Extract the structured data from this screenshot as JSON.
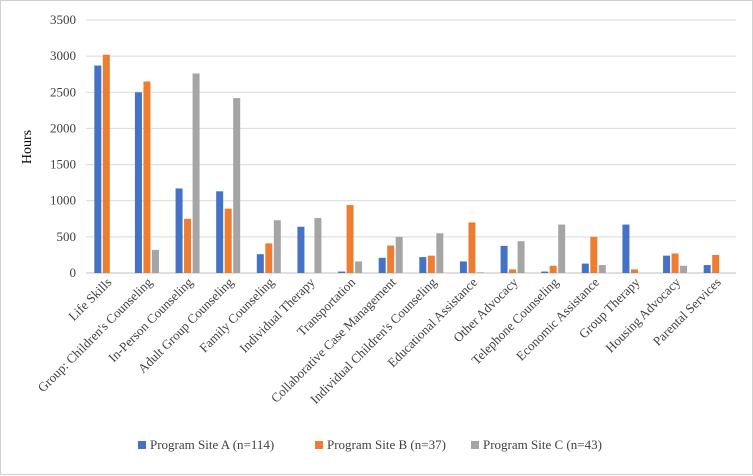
{
  "chart_data": {
    "type": "bar",
    "title": "",
    "xlabel": "",
    "ylabel": "Hours",
    "ylim": [
      0,
      3500
    ],
    "yticks": [
      0,
      500,
      1000,
      1500,
      2000,
      2500,
      3000,
      3500
    ],
    "grid": true,
    "legend_position": "bottom",
    "categories": [
      "Life Skills",
      "Group: Children's Counseling",
      "In-Person Counseling",
      "Adult Group Counseling",
      "Family Counseling",
      "Individual Therapy",
      "Transportation",
      "Collaborative Case Management",
      "Individual Children's Counseling",
      "Educational Assistance",
      "Other Advocacy",
      "Telephone Counseling",
      "Economic Assistance",
      "Group Therapy",
      "Housing Advocacy",
      "Parental Services"
    ],
    "series": [
      {
        "name": "Program Site A (n=114)",
        "color": "#4472c4",
        "values": [
          2870,
          2500,
          1170,
          1130,
          260,
          640,
          20,
          210,
          220,
          160,
          375,
          20,
          130,
          670,
          240,
          110
        ]
      },
      {
        "name": "Program Site B (n=37)",
        "color": "#ed7d31",
        "values": [
          3020,
          2650,
          750,
          890,
          410,
          0,
          940,
          380,
          240,
          700,
          50,
          100,
          500,
          50,
          270,
          250
        ]
      },
      {
        "name": "Program Site C (n=43)",
        "color": "#a5a5a5",
        "values": [
          0,
          320,
          2760,
          2420,
          730,
          760,
          160,
          500,
          550,
          10,
          440,
          670,
          110,
          0,
          100,
          0
        ]
      }
    ]
  }
}
